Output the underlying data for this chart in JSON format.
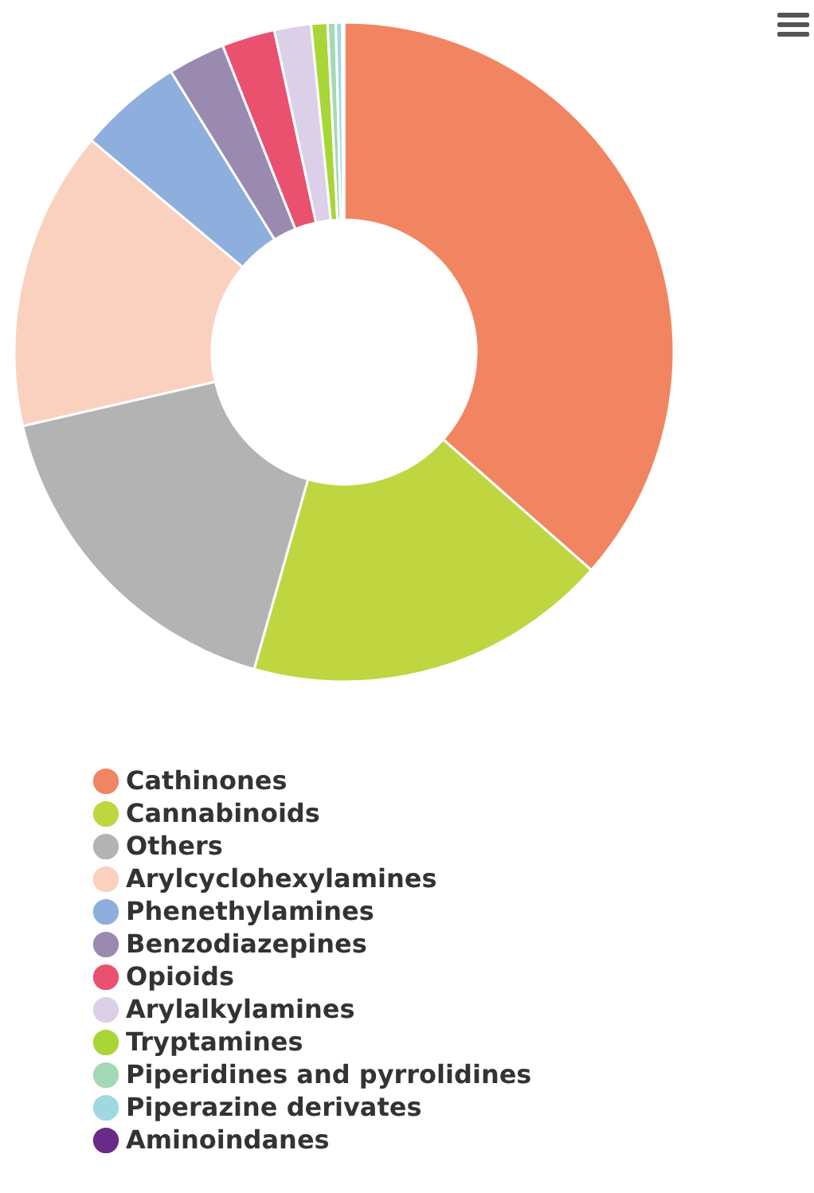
{
  "chart_data": {
    "type": "donut",
    "categories": [
      "Cathinones",
      "Cannabinoids",
      "Others",
      "Arylcyclohexylamines",
      "Phenethylamines",
      "Benzodiazepines",
      "Opioids",
      "Arylalkylamines",
      "Tryptamines",
      "Piperidines and pyrrolidines",
      "Piperazine derivates",
      "Aminoindanes"
    ],
    "values": [
      36.5,
      17.9,
      17.0,
      14.7,
      5.1,
      2.8,
      2.6,
      1.8,
      0.8,
      0.4,
      0.3,
      0.1
    ],
    "colors": [
      "#f28561",
      "#bfd641",
      "#b3b3b3",
      "#fad0bf",
      "#8eaedd",
      "#9a8aaf",
      "#e9516f",
      "#dcd0e8",
      "#a8d636",
      "#a5d9b5",
      "#9fd8e0",
      "#6b2a8a"
    ],
    "legend": "bottom"
  }
}
